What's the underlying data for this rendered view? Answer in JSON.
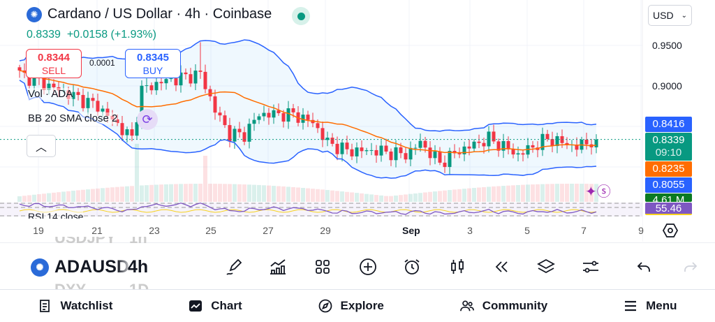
{
  "header": {
    "title": "Cardano / US Dollar · 4h · Coinbase",
    "last": "0.8339",
    "change": "+0.0158 (+1.93%)",
    "currency": "USD"
  },
  "trade": {
    "sell_price": "0.8344",
    "sell_label": "SELL",
    "buy_price": "0.8345",
    "buy_label": "BUY",
    "spread": "0.0001"
  },
  "indicators": {
    "volume": "Vol · ADA",
    "bb": "BB 20 SMA close 2",
    "rsi": "RSI 14 close"
  },
  "price_axis": {
    "ticks": [
      "0.9500",
      "0.9000"
    ],
    "labels": [
      {
        "value": "0.8416",
        "color": "#2962ff"
      },
      {
        "value": "0.8339",
        "sub": "09:10",
        "color": "#089981"
      },
      {
        "value": "0.8235",
        "color": "#ff6d00"
      },
      {
        "value": "0.8055",
        "color": "#2962ff"
      },
      {
        "value": "4.61 M",
        "color": "#0b7a22"
      },
      {
        "value": "55.46",
        "color": "#7e57c2"
      }
    ]
  },
  "time_axis": [
    "19",
    "21",
    "23",
    "25",
    "27",
    "29",
    "Sep",
    "3",
    "5",
    "7",
    "9"
  ],
  "toolbar": {
    "symbol": "ADAUSD",
    "interval": "4h",
    "ghost_top_symbol": "USDJPY",
    "ghost_top_interval": "1h",
    "ghost_bottom_symbol": "DXY",
    "ghost_bottom_interval": "1D"
  },
  "nav": {
    "watchlist": "Watchlist",
    "chart": "Chart",
    "explore": "Explore",
    "community": "Community",
    "menu": "Menu"
  },
  "colors": {
    "up": "#089981",
    "down": "#f23645",
    "bb_band": "#2962ff",
    "bb_mid": "#ff6d00",
    "rsi": "#7e57c2"
  },
  "chart_data": {
    "type": "candlestick",
    "symbol": "ADAUSD",
    "interval": "4h",
    "price_path": [
      [
        0,
        0.915
      ],
      [
        10,
        0.89
      ],
      [
        16,
        0.875
      ],
      [
        23,
        0.835
      ],
      [
        25,
        0.895
      ],
      [
        29,
        0.905
      ],
      [
        37,
        0.915
      ],
      [
        40,
        0.87
      ],
      [
        43,
        0.84
      ],
      [
        46,
        0.84
      ],
      [
        49,
        0.865
      ],
      [
        56,
        0.865
      ],
      [
        60,
        0.855
      ],
      [
        63,
        0.83
      ],
      [
        67,
        0.82
      ],
      [
        73,
        0.82
      ],
      [
        79,
        0.815
      ],
      [
        82,
        0.83
      ],
      [
        86,
        0.805
      ],
      [
        90,
        0.82
      ],
      [
        96,
        0.835
      ],
      [
        102,
        0.815
      ],
      [
        108,
        0.835
      ],
      [
        114,
        0.825
      ],
      [
        118,
        0.834
      ]
    ],
    "ylim": [
      0.78,
      0.97
    ],
    "last": 0.8339,
    "rsi_last": 55.46,
    "volume_last": "4.61 M"
  }
}
